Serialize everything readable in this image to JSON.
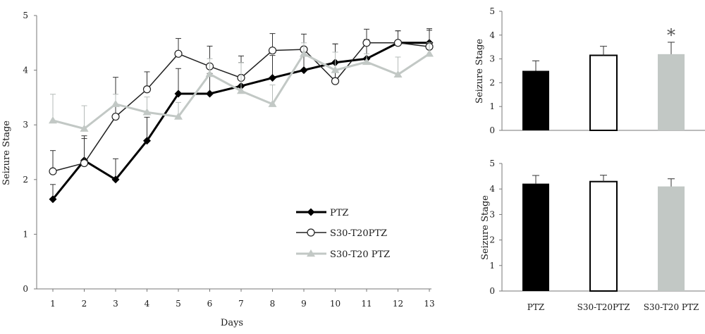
{
  "chart_data": [
    {
      "type": "line",
      "title": "",
      "xlabel": "Days",
      "ylabel": "Seizure Stage",
      "ylim": [
        0,
        5
      ],
      "yticks": [
        "0",
        "1",
        "2",
        "3",
        "4",
        "5"
      ],
      "x": [
        1,
        2,
        3,
        4,
        5,
        6,
        7,
        8,
        9,
        10,
        11,
        12,
        13
      ],
      "grid": false,
      "legend_position": "bottom-right",
      "series": [
        {
          "name": "PTZ",
          "marker": "diamond",
          "color": "#000000",
          "values": [
            1.64,
            2.35,
            2.0,
            2.71,
            3.57,
            3.57,
            3.71,
            3.86,
            4.0,
            4.14,
            4.21,
            4.5,
            4.5
          ],
          "errors": [
            0.27,
            0.45,
            0.38,
            0.43,
            0.46,
            0.37,
            0.43,
            0.41,
            0.28,
            0.34,
            0.35,
            0.22,
            0.26
          ]
        },
        {
          "name": "S30-T20PTZ",
          "marker": "circle",
          "color": "#222222",
          "values": [
            2.15,
            2.3,
            3.15,
            3.65,
            4.3,
            4.07,
            3.86,
            4.36,
            4.38,
            3.8,
            4.5,
            4.5,
            4.43
          ],
          "errors": [
            0.38,
            0.45,
            0.72,
            0.32,
            0.28,
            0.37,
            0.4,
            0.31,
            0.28,
            0.68,
            0.25,
            0.22,
            0.3
          ]
        },
        {
          "name": "S30-T20 PTZ",
          "marker": "triangle",
          "color": "#c2c8c5",
          "values": [
            3.08,
            2.93,
            3.38,
            3.23,
            3.15,
            3.93,
            3.62,
            3.38,
            4.3,
            4.0,
            4.15,
            3.92,
            4.3
          ],
          "errors": [
            0.48,
            0.42,
            0.18,
            0.28,
            0.26,
            0.28,
            0.52,
            0.35,
            0.2,
            0.33,
            0.15,
            0.32,
            0.2
          ]
        }
      ]
    },
    {
      "type": "bar",
      "title": "",
      "xlabel": "",
      "ylabel": "Seizure Stage",
      "ylim": [
        0,
        5
      ],
      "yticks": [
        "0",
        "1",
        "2",
        "3",
        "4",
        "5"
      ],
      "categories": [
        "PTZ",
        "S30-T20PTZ",
        "S30-T20 PTZ"
      ],
      "values": [
        2.5,
        3.15,
        3.2
      ],
      "errors": [
        0.42,
        0.38,
        0.5
      ],
      "colors": [
        "#000000",
        "#ffffff",
        "#c2c8c5"
      ],
      "annotations": [
        "",
        "",
        "*"
      ]
    },
    {
      "type": "bar",
      "title": "",
      "xlabel": "",
      "ylabel": "Seizure Stage",
      "ylim": [
        0,
        5
      ],
      "yticks": [
        "0",
        "1",
        "2",
        "3",
        "4",
        "5"
      ],
      "categories": [
        "PTZ",
        "S30-T20PTZ",
        "S30-T20 PTZ"
      ],
      "values": [
        4.21,
        4.29,
        4.1
      ],
      "errors": [
        0.32,
        0.25,
        0.3
      ],
      "colors": [
        "#000000",
        "#ffffff",
        "#c2c8c5"
      ],
      "annotations": [
        "",
        "",
        ""
      ]
    }
  ]
}
